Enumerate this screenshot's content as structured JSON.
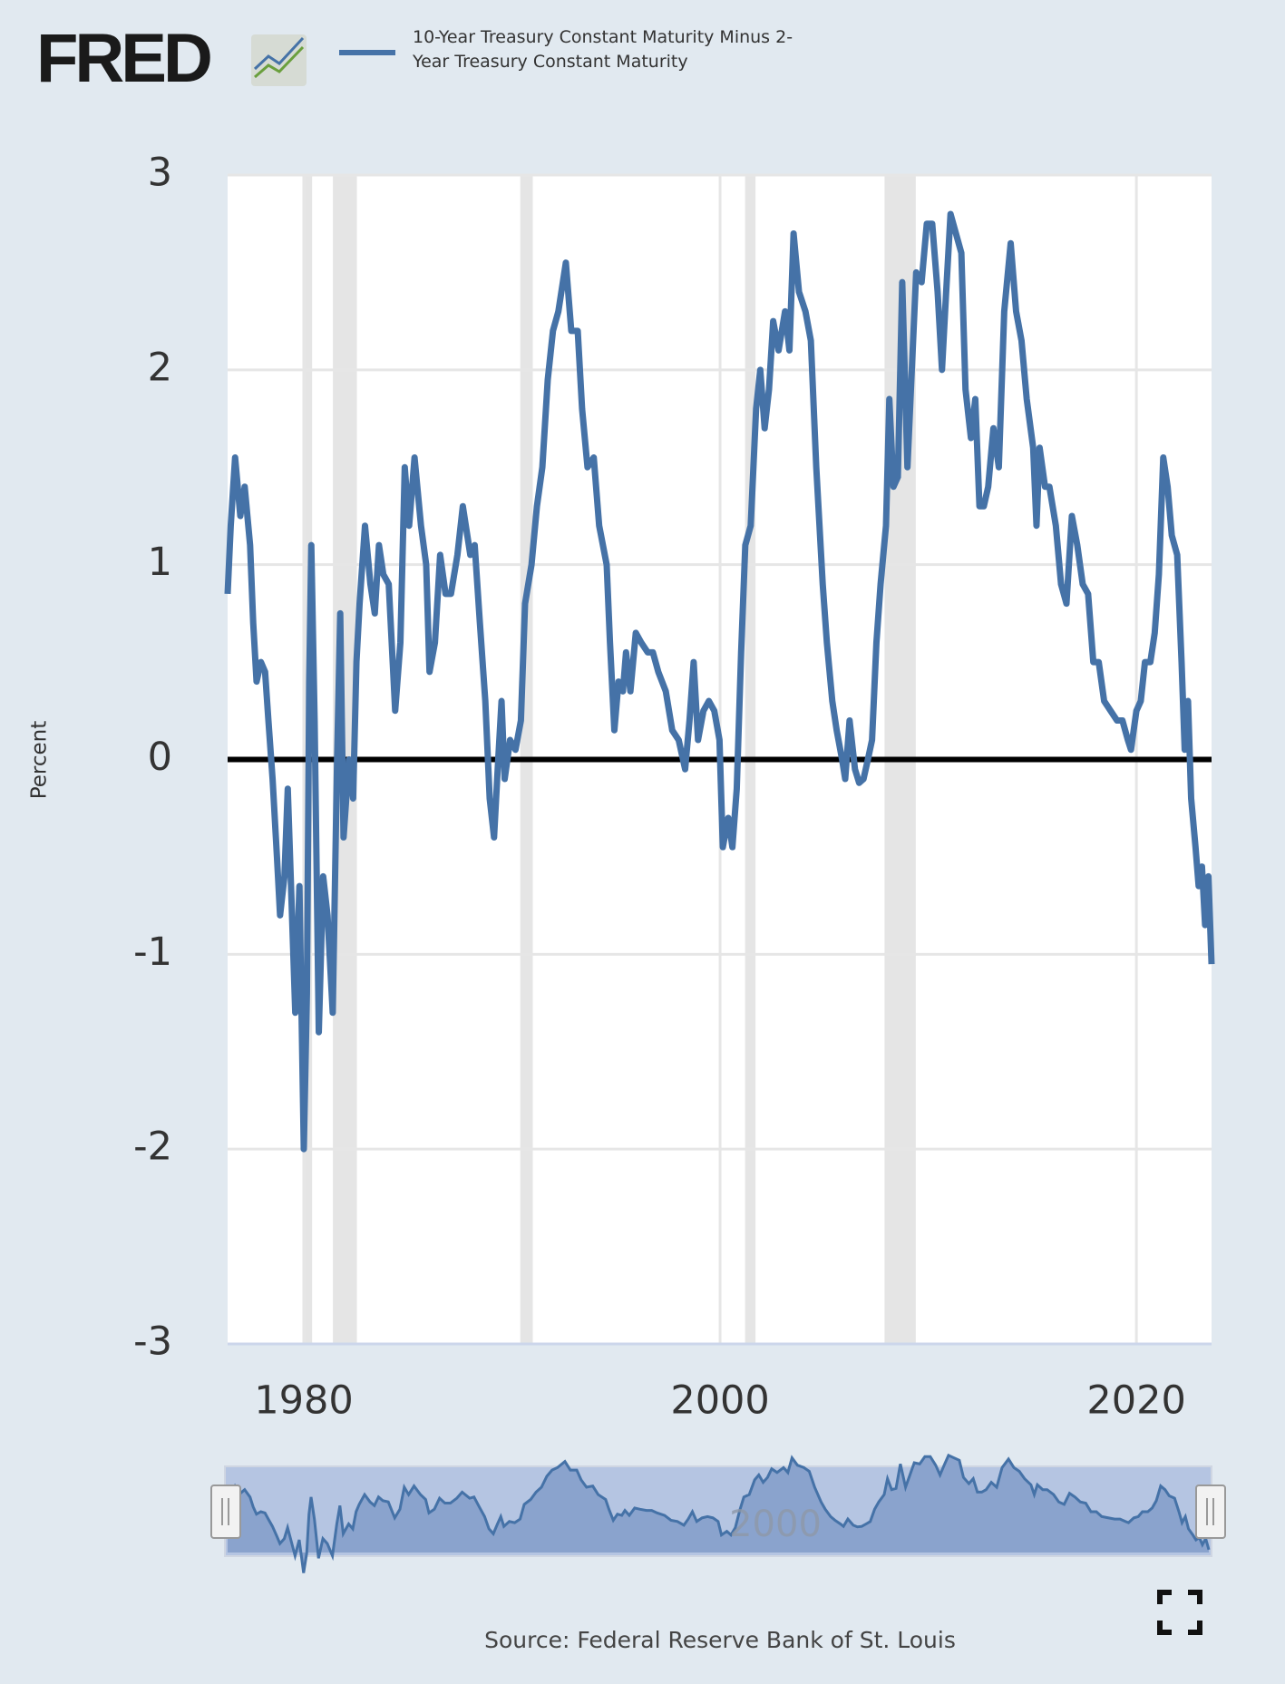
{
  "logo": "FRED",
  "source": "Source: Federal Reserve Bank of St. Louis",
  "chart_data": {
    "type": "line",
    "ylabel": "Percent",
    "x": [
      1976.34,
      1976.49,
      1976.7,
      1976.95,
      1977.16,
      1977.42,
      1977.57,
      1977.73,
      1977.94,
      1978.14,
      1978.3,
      1978.5,
      1978.71,
      1978.86,
      1979.07,
      1979.23,
      1979.59,
      1979.79,
      1980.0,
      1980.15,
      1980.26,
      1980.36,
      1980.52,
      1980.72,
      1980.93,
      1981.14,
      1981.39,
      1981.6,
      1981.75,
      1981.91,
      1982.17,
      1982.37,
      1982.53,
      1982.68,
      1982.94,
      1983.2,
      1983.41,
      1983.61,
      1983.82,
      1984.08,
      1984.39,
      1984.64,
      1984.85,
      1985.06,
      1985.32,
      1985.63,
      1985.88,
      1986.04,
      1986.3,
      1986.55,
      1986.81,
      1987.07,
      1987.38,
      1987.64,
      1988.0,
      1988.21,
      1988.46,
      1988.72,
      1988.93,
      1989.14,
      1989.34,
      1989.5,
      1989.65,
      1989.91,
      1990.17,
      1990.43,
      1990.63,
      1990.94,
      1991.2,
      1991.46,
      1991.72,
      1991.97,
      1992.23,
      1992.59,
      1992.85,
      1993.16,
      1993.37,
      1993.63,
      1993.93,
      1994.19,
      1994.55,
      1994.71,
      1994.92,
      1995.12,
      1995.33,
      1995.48,
      1995.69,
      1995.95,
      1996.21,
      1996.52,
      1996.77,
      1997.03,
      1997.39,
      1997.7,
      1998.01,
      1998.32,
      1998.53,
      1998.73,
      1998.94,
      1999.2,
      1999.46,
      1999.72,
      1999.97,
      2000.13,
      2000.39,
      2000.59,
      2000.8,
      2001.01,
      2001.21,
      2001.47,
      2001.73,
      2001.93,
      2002.14,
      2002.35,
      2002.55,
      2002.81,
      2003.12,
      2003.33,
      2003.53,
      2003.79,
      2004.1,
      2004.36,
      2004.62,
      2004.93,
      2005.13,
      2005.39,
      2005.6,
      2005.86,
      2006.01,
      2006.22,
      2006.48,
      2006.68,
      2006.89,
      2007.1,
      2007.3,
      2007.51,
      2007.71,
      2007.97,
      2008.13,
      2008.33,
      2008.54,
      2008.75,
      2009.0,
      2009.21,
      2009.42,
      2009.68,
      2009.93,
      2010.19,
      2010.45,
      2010.66,
      2010.86,
      2011.07,
      2011.33,
      2011.59,
      2011.79,
      2012.05,
      2012.26,
      2012.46,
      2012.67,
      2012.88,
      2013.13,
      2013.39,
      2013.65,
      2013.96,
      2014.22,
      2014.48,
      2014.73,
      2015.04,
      2015.2,
      2015.35,
      2015.61,
      2015.82,
      2016.13,
      2016.38,
      2016.64,
      2016.9,
      2017.16,
      2017.42,
      2017.68,
      2017.93,
      2018.19,
      2018.45,
      2018.76,
      2019.07,
      2019.33,
      2019.59,
      2019.74,
      2020.0,
      2020.21,
      2020.41,
      2020.67,
      2020.88,
      2021.08,
      2021.29,
      2021.5,
      2021.7,
      2021.96,
      2022.17,
      2022.32,
      2022.48,
      2022.63,
      2022.84,
      2022.99,
      2023.15,
      2023.3,
      2023.46,
      2023.61
    ],
    "series": [
      {
        "name": "10-Year Treasury Constant Maturity Minus 2-Year Treasury Constant Maturity",
        "color": "#4572a7",
        "values": [
          0.85,
          1.2,
          1.55,
          1.25,
          1.4,
          1.1,
          0.7,
          0.4,
          0.5,
          0.45,
          0.2,
          -0.1,
          -0.5,
          -0.8,
          -0.6,
          -0.15,
          -1.3,
          -0.65,
          -2.0,
          -1.2,
          0.4,
          1.1,
          0.2,
          -1.4,
          -0.6,
          -0.8,
          -1.3,
          0.0,
          0.75,
          -0.4,
          0.0,
          -0.2,
          0.5,
          0.8,
          1.2,
          0.9,
          0.75,
          1.1,
          0.95,
          0.9,
          0.25,
          0.6,
          1.5,
          1.2,
          1.55,
          1.2,
          1.0,
          0.45,
          0.6,
          1.05,
          0.85,
          0.85,
          1.05,
          1.3,
          1.05,
          1.1,
          0.7,
          0.3,
          -0.2,
          -0.4,
          0.0,
          0.3,
          -0.1,
          0.1,
          0.05,
          0.2,
          0.8,
          1.0,
          1.3,
          1.5,
          1.95,
          2.2,
          2.3,
          2.55,
          2.2,
          2.2,
          1.8,
          1.5,
          1.55,
          1.2,
          1.0,
          0.6,
          0.15,
          0.4,
          0.35,
          0.55,
          0.35,
          0.65,
          0.6,
          0.55,
          0.55,
          0.45,
          0.35,
          0.15,
          0.1,
          -0.05,
          0.2,
          0.5,
          0.1,
          0.25,
          0.3,
          0.25,
          0.1,
          -0.45,
          -0.3,
          -0.45,
          -0.15,
          0.55,
          1.1,
          1.2,
          1.8,
          2.0,
          1.7,
          1.9,
          2.25,
          2.1,
          2.3,
          2.1,
          2.7,
          2.4,
          2.3,
          2.15,
          1.5,
          0.9,
          0.6,
          0.3,
          0.15,
          0.0,
          -0.1,
          0.2,
          -0.05,
          -0.12,
          -0.1,
          0.0,
          0.1,
          0.6,
          0.9,
          1.2,
          1.85,
          1.4,
          1.45,
          2.45,
          1.5,
          2.0,
          2.5,
          2.45,
          2.75,
          2.75,
          2.4,
          2.0,
          2.4,
          2.8,
          2.7,
          2.6,
          1.9,
          1.65,
          1.85,
          1.3,
          1.3,
          1.4,
          1.7,
          1.5,
          2.3,
          2.65,
          2.3,
          2.15,
          1.85,
          1.6,
          1.2,
          1.6,
          1.4,
          1.4,
          1.2,
          0.9,
          0.8,
          1.25,
          1.1,
          0.9,
          0.85,
          0.5,
          0.5,
          0.3,
          0.25,
          0.2,
          0.2,
          0.1,
          0.05,
          0.25,
          0.3,
          0.5,
          0.5,
          0.65,
          0.95,
          1.55,
          1.4,
          1.15,
          1.05,
          0.5,
          0.05,
          0.3,
          -0.2,
          -0.45,
          -0.65,
          -0.55,
          -0.85,
          -0.6,
          -1.05
        ]
      }
    ],
    "xlim": [
      1976.34,
      2023.61
    ],
    "ylim": [
      -3,
      3
    ],
    "xticks": [
      1980,
      2000,
      2020
    ],
    "yticks": [
      -3,
      -2,
      -1,
      0,
      1,
      2,
      3
    ],
    "grid": true,
    "zero_line": true,
    "recessions": [
      [
        1980.0,
        1980.4
      ],
      [
        1981.4,
        1982.55
      ],
      [
        1990.4,
        1991.0
      ],
      [
        2001.2,
        2001.7
      ],
      [
        2007.9,
        2009.4
      ]
    ],
    "recession_color": "#e5e5e5"
  }
}
